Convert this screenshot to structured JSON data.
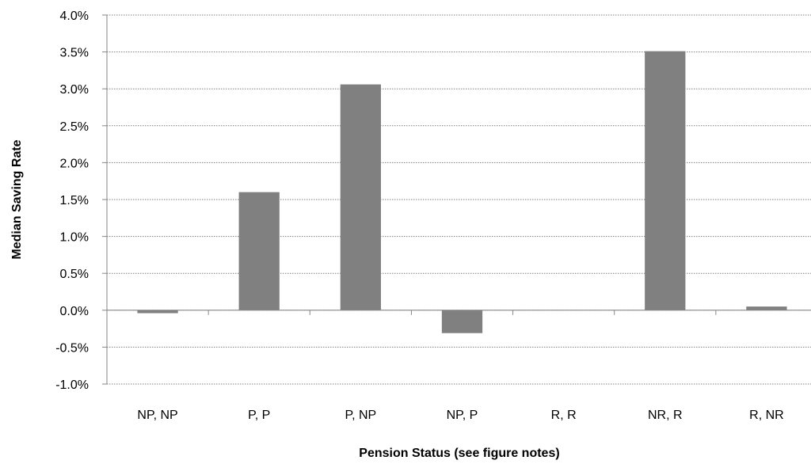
{
  "chart_data": {
    "type": "bar",
    "title": "",
    "xlabel": "Pension Status (see figure notes)",
    "ylabel": "Median Saving Rate",
    "categories": [
      "NP, NP",
      "P, P",
      "P, NP",
      "NP, P",
      "R, R",
      "NR, R",
      "R, NR"
    ],
    "values": [
      -0.0004,
      0.016,
      0.0306,
      -0.0031,
      0.0,
      0.0351,
      0.0005
    ],
    "ylim": [
      -0.01,
      0.04
    ],
    "yticks": [
      -0.01,
      -0.005,
      0.0,
      0.005,
      0.01,
      0.015,
      0.02,
      0.025,
      0.03,
      0.035,
      0.04
    ],
    "ytick_labels": [
      "-1.0%",
      "-0.5%",
      "0.0%",
      "0.5%",
      "1.0%",
      "1.5%",
      "2.0%",
      "2.5%",
      "3.0%",
      "3.5%",
      "4.0%"
    ],
    "grid": true,
    "legend": "none",
    "bar_color": "#808080",
    "grid_color": "#808080",
    "axis_color": "#868686"
  }
}
